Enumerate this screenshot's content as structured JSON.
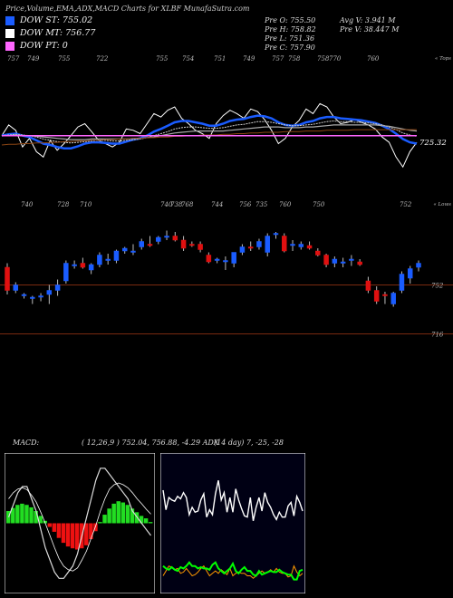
{
  "title": "Price,Volume,EMA,ADX,MACD Charts for XLBF MunafaSutra.com",
  "legend": [
    {
      "label": "DOW ST: 755.02",
      "color": "#1a5cff"
    },
    {
      "label": "DOW MT: 756.77",
      "color": "#ffffff"
    },
    {
      "label": "DOW PT: 0",
      "color": "#ff66ff"
    }
  ],
  "ohlc": {
    "open": "Pre O: 755.50",
    "high": "Pre H: 758.82",
    "low": "Pre L: 751.36",
    "close": "Pre C: 757.90",
    "avg_vol": "Avg V: 3.941 M",
    "vol": "Pre V: 38.447 M"
  },
  "indicator_header": {
    "macd_label": "MACD:",
    "macd_values": "( 12,26,9 ) 752.04, 756.88, -4.29 ADX",
    "adx_values": "(14 day) 7, -25, -28"
  },
  "chart_data": [
    {
      "type": "line",
      "name": "ema-panel",
      "top_labels": [
        "757",
        "749",
        "755",
        "722",
        "755",
        "754",
        "751",
        "749",
        "757",
        "758",
        "758",
        "770",
        "760"
      ],
      "top_label_x": [
        8,
        30,
        64,
        106,
        172,
        201,
        236,
        268,
        300,
        318,
        350,
        363,
        405
      ],
      "bottom_labels": [
        "740",
        "728",
        "710",
        "740",
        "738",
        "768",
        "744",
        "756",
        "735",
        "760",
        "750",
        "752"
      ],
      "bottom_label_x": [
        23,
        63,
        88,
        177,
        188,
        200,
        233,
        264,
        282,
        308,
        345,
        441
      ],
      "corner_top": "« Tops",
      "corner_bottom": "« Lows",
      "last_value": "725.32",
      "series": [
        {
          "name": "close",
          "color": "#ffffff",
          "values": [
            752,
            768,
            760,
            735,
            748,
            728,
            720,
            745,
            730,
            740,
            752,
            765,
            770,
            758,
            745,
            740,
            735,
            742,
            762,
            760,
            755,
            770,
            785,
            780,
            790,
            795,
            778,
            770,
            760,
            755,
            748,
            770,
            782,
            790,
            785,
            778,
            792,
            788,
            776,
            760,
            740,
            748,
            765,
            775,
            792,
            785,
            800,
            795,
            780,
            770,
            772,
            776,
            772,
            768,
            762,
            750,
            742,
            720,
            705,
            728,
            742
          ]
        },
        {
          "name": "ema-fast",
          "color": "#1a5cff",
          "values": [
            752,
            754,
            755,
            752,
            750,
            745,
            740,
            738,
            735,
            733,
            733,
            736,
            740,
            742,
            742,
            741,
            740,
            740,
            743,
            746,
            748,
            752,
            758,
            762,
            767,
            772,
            774,
            774,
            772,
            770,
            767,
            767,
            770,
            774,
            776,
            777,
            780,
            782,
            781,
            778,
            772,
            768,
            767,
            768,
            772,
            774,
            778,
            780,
            780,
            778,
            777,
            776,
            775,
            773,
            771,
            767,
            762,
            755,
            747,
            742,
            740
          ]
        },
        {
          "name": "ema-mid",
          "color": "#cccccc",
          "values": [
            752,
            753,
            754,
            753,
            752,
            750,
            747,
            745,
            743,
            742,
            741,
            742,
            743,
            744,
            745,
            745,
            744,
            744,
            745,
            746,
            747,
            749,
            752,
            755,
            758,
            762,
            764,
            765,
            765,
            764,
            763,
            763,
            764,
            766,
            768,
            769,
            771,
            773,
            773,
            772,
            770,
            768,
            767,
            767,
            768,
            769,
            771,
            773,
            774,
            773,
            773,
            772,
            772,
            771,
            770,
            768,
            765,
            761,
            756,
            753,
            751
          ]
        },
        {
          "name": "ema-slow",
          "color": "#aaaaaa",
          "values": [
            752,
            752,
            753,
            752,
            752,
            751,
            750,
            749,
            748,
            747,
            746,
            746,
            746,
            747,
            747,
            747,
            747,
            747,
            747,
            748,
            748,
            749,
            750,
            752,
            754,
            756,
            757,
            758,
            759,
            759,
            759,
            759,
            759,
            760,
            761,
            762,
            763,
            764,
            765,
            765,
            765,
            764,
            764,
            764,
            765,
            765,
            766,
            767,
            768,
            768,
            768,
            768,
            768,
            768,
            768,
            767,
            766,
            764,
            762,
            760,
            759
          ]
        },
        {
          "name": "ema-long",
          "color": "#8b4513",
          "values": [
            738,
            739,
            739,
            740,
            740,
            741,
            741,
            742,
            742,
            743,
            743,
            744,
            744,
            745,
            745,
            746,
            746,
            747,
            747,
            748,
            748,
            749,
            749,
            750,
            750,
            751,
            751,
            752,
            752,
            753,
            753,
            753,
            754,
            754,
            755,
            755,
            756,
            756,
            757,
            757,
            757,
            758,
            758,
            758,
            759,
            759,
            759,
            760,
            760,
            760,
            760,
            761,
            761,
            761,
            761,
            761,
            761,
            761,
            761,
            761,
            761
          ]
        },
        {
          "name": "dow-pt",
          "color": "#ff66ff",
          "values": [
            752,
            752,
            752,
            752,
            752,
            752,
            752,
            752,
            752,
            752,
            752,
            752,
            752,
            752,
            752,
            752,
            752,
            752,
            752,
            752,
            752,
            752,
            752,
            752,
            752,
            752,
            752,
            752,
            752,
            752,
            752,
            752,
            752,
            752,
            752,
            752,
            752,
            752,
            752,
            752,
            752,
            752,
            752,
            752,
            752,
            752,
            752,
            752,
            752,
            752,
            752,
            752,
            752,
            752,
            752,
            752,
            752,
            752,
            752,
            752,
            752
          ]
        }
      ],
      "ylim": [
        700,
        810
      ]
    },
    {
      "type": "candlestick",
      "name": "price-panel",
      "level_labels": [
        "752",
        "716"
      ],
      "level_values": [
        752,
        716
      ],
      "candles": [
        {
          "o": 765,
          "h": 768,
          "l": 745,
          "c": 748
        },
        {
          "o": 748,
          "h": 754,
          "l": 746,
          "c": 752
        },
        {
          "o": 744,
          "h": 746,
          "l": 742,
          "c": 745
        },
        {
          "o": 742,
          "h": 744,
          "l": 738,
          "c": 743
        },
        {
          "o": 743,
          "h": 746,
          "l": 740,
          "c": 744
        },
        {
          "o": 745,
          "h": 752,
          "l": 738,
          "c": 748
        },
        {
          "o": 748,
          "h": 756,
          "l": 744,
          "c": 752
        },
        {
          "o": 755,
          "h": 770,
          "l": 753,
          "c": 768
        },
        {
          "o": 766,
          "h": 770,
          "l": 764,
          "c": 767
        },
        {
          "o": 768,
          "h": 772,
          "l": 764,
          "c": 765
        },
        {
          "o": 763,
          "h": 768,
          "l": 760,
          "c": 767
        },
        {
          "o": 767,
          "h": 776,
          "l": 765,
          "c": 774
        },
        {
          "o": 770,
          "h": 775,
          "l": 767,
          "c": 771
        },
        {
          "o": 770,
          "h": 778,
          "l": 768,
          "c": 777
        },
        {
          "o": 777,
          "h": 780,
          "l": 775,
          "c": 779
        },
        {
          "o": 776,
          "h": 782,
          "l": 774,
          "c": 777
        },
        {
          "o": 780,
          "h": 786,
          "l": 778,
          "c": 784
        },
        {
          "o": 782,
          "h": 788,
          "l": 780,
          "c": 781
        },
        {
          "o": 784,
          "h": 788,
          "l": 782,
          "c": 787
        },
        {
          "o": 787,
          "h": 792,
          "l": 785,
          "c": 788
        },
        {
          "o": 788,
          "h": 791,
          "l": 784,
          "c": 785
        },
        {
          "o": 785,
          "h": 788,
          "l": 777,
          "c": 779
        },
        {
          "o": 782,
          "h": 784,
          "l": 780,
          "c": 781
        },
        {
          "o": 782,
          "h": 784,
          "l": 776,
          "c": 778
        },
        {
          "o": 774,
          "h": 776,
          "l": 768,
          "c": 769
        },
        {
          "o": 770,
          "h": 772,
          "l": 768,
          "c": 771
        },
        {
          "o": 770,
          "h": 773,
          "l": 763,
          "c": 770
        },
        {
          "o": 768,
          "h": 776,
          "l": 765,
          "c": 776
        },
        {
          "o": 776,
          "h": 782,
          "l": 774,
          "c": 780
        },
        {
          "o": 780,
          "h": 784,
          "l": 777,
          "c": 779
        },
        {
          "o": 780,
          "h": 786,
          "l": 778,
          "c": 784
        },
        {
          "o": 776,
          "h": 790,
          "l": 773,
          "c": 788
        },
        {
          "o": 789,
          "h": 791,
          "l": 786,
          "c": 790
        },
        {
          "o": 788,
          "h": 790,
          "l": 776,
          "c": 777
        },
        {
          "o": 781,
          "h": 785,
          "l": 777,
          "c": 782
        },
        {
          "o": 780,
          "h": 784,
          "l": 778,
          "c": 782
        },
        {
          "o": 781,
          "h": 784,
          "l": 778,
          "c": 779
        },
        {
          "o": 777,
          "h": 779,
          "l": 773,
          "c": 774
        },
        {
          "o": 774,
          "h": 775,
          "l": 765,
          "c": 767
        },
        {
          "o": 768,
          "h": 773,
          "l": 765,
          "c": 771
        },
        {
          "o": 768,
          "h": 772,
          "l": 765,
          "c": 769
        },
        {
          "o": 770,
          "h": 774,
          "l": 766,
          "c": 771
        },
        {
          "o": 769,
          "h": 771,
          "l": 766,
          "c": 767
        },
        {
          "o": 755,
          "h": 758,
          "l": 746,
          "c": 748
        },
        {
          "o": 748,
          "h": 751,
          "l": 738,
          "c": 740
        },
        {
          "o": 745,
          "h": 747,
          "l": 738,
          "c": 744
        },
        {
          "o": 738,
          "h": 747,
          "l": 736,
          "c": 746
        },
        {
          "o": 748,
          "h": 762,
          "l": 746,
          "c": 760
        },
        {
          "o": 757,
          "h": 766,
          "l": 753,
          "c": 764
        },
        {
          "o": 765,
          "h": 770,
          "l": 762,
          "c": 768
        }
      ],
      "ylim": [
        705,
        805
      ]
    },
    {
      "type": "bar+line",
      "name": "macd-panel",
      "histogram": [
        2,
        2.5,
        3,
        3.2,
        3,
        2.6,
        2,
        1.2,
        0.4,
        -0.6,
        -1.4,
        -2.4,
        -3.2,
        -3.8,
        -4.1,
        -4.3,
        -4.1,
        -3.6,
        -2.6,
        -1.3,
        0.2,
        1.4,
        2.4,
        3.2,
        3.6,
        3.4,
        3,
        2.4,
        1.8,
        1.2,
        0.8,
        0.2
      ],
      "macd_line": [
        1,
        3,
        5,
        6,
        6,
        4,
        2,
        -1,
        -4,
        -6,
        -8,
        -9,
        -9,
        -8,
        -7,
        -5,
        -2,
        1,
        4,
        7,
        9,
        9,
        8,
        7,
        6,
        5,
        4,
        2,
        1,
        0,
        -1,
        -2
      ],
      "signal_line": [
        4,
        5,
        5.6,
        5.8,
        5.5,
        4.6,
        3.5,
        1.8,
        0,
        -2,
        -4,
        -5.8,
        -7,
        -7.6,
        -7.8,
        -7.3,
        -6,
        -4.5,
        -2.4,
        -0.4,
        2,
        4,
        5.6,
        6.3,
        6.6,
        6.3,
        5.8,
        5,
        4,
        3.2,
        2.3,
        1.5
      ],
      "ylim": [
        -10,
        10
      ]
    },
    {
      "type": "line",
      "name": "adx-panel",
      "series": [
        {
          "name": "di-plus",
          "color": "#ffffff",
          "values": [
            80,
            64,
            74,
            72,
            71,
            75,
            73,
            78,
            74,
            60,
            66,
            62,
            63,
            72,
            77,
            58,
            64,
            60,
            77,
            88,
            72,
            78,
            62,
            74,
            62,
            81,
            72,
            65,
            59,
            58,
            74,
            55,
            66,
            74,
            63,
            78,
            70,
            66,
            60,
            56,
            62,
            58,
            58,
            67,
            70,
            59,
            75,
            70,
            63
          ]
        },
        {
          "name": "di-minus",
          "color": "#ff9900",
          "values": [
            10,
            14,
            18,
            17,
            15,
            16,
            12,
            13,
            16,
            13,
            10,
            11,
            13,
            16,
            18,
            14,
            10,
            12,
            14,
            12,
            15,
            13,
            11,
            16,
            10,
            12,
            13,
            12,
            12,
            10,
            10,
            8,
            10,
            12,
            14,
            12,
            13,
            15,
            13,
            16,
            13,
            12,
            12,
            9,
            10,
            18,
            13,
            10,
            12
          ]
        },
        {
          "name": "adx",
          "color": "#00ff00",
          "values": [
            18,
            16,
            15,
            17,
            15,
            14,
            17,
            16,
            18,
            21,
            18,
            18,
            16,
            17,
            16,
            16,
            15,
            19,
            21,
            16,
            14,
            12,
            14,
            16,
            20,
            14,
            12,
            15,
            17,
            14,
            14,
            11,
            10,
            14,
            11,
            12,
            13,
            14,
            13,
            13,
            15,
            13,
            12,
            11,
            11,
            7,
            7,
            14,
            15
          ]
        }
      ],
      "ylim": [
        0,
        100
      ]
    }
  ]
}
